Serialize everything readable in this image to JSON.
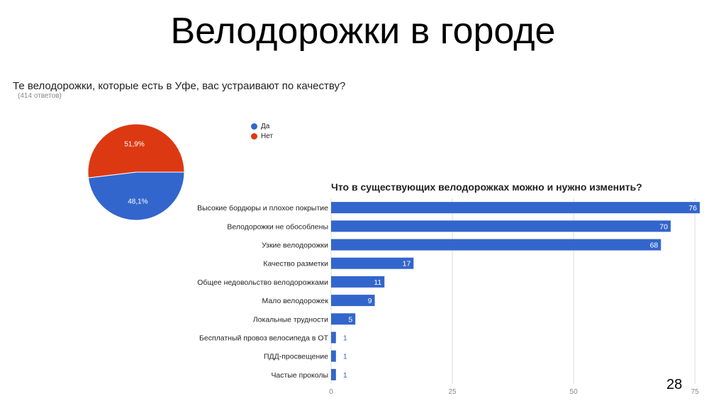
{
  "slide": {
    "title": "Велодорожки в городе",
    "page_number": "28"
  },
  "colors": {
    "blue": "#3366cc",
    "red": "#dc3912",
    "grid": "#dddddd"
  },
  "chart_data": [
    {
      "type": "pie",
      "title": "Те велодорожки, которые есть в Уфе, вас устраивают по качеству?",
      "subtitle": "(414 ответов)",
      "labels": [
        "Да",
        "Нет"
      ],
      "values": [
        48.1,
        51.9
      ],
      "value_labels": [
        "48,1%",
        "51,9%"
      ],
      "legend": "right"
    },
    {
      "type": "bar",
      "orientation": "horizontal",
      "title": "Что в существующих велодорожках можно и нужно изменить?",
      "categories": [
        "Высокие бордюры и плохое покрытие",
        "Велодорожки не обособлены",
        "Узкие велодорожки",
        "Качество разметки",
        "Общее недовольство велодорожками",
        "Мало велодорожек",
        "Локальные трудности",
        "Бесплатный провоз велосипеда в ОТ",
        "ПДД-просвещение",
        "Частые проколы"
      ],
      "values": [
        76,
        70,
        68,
        17,
        11,
        9,
        5,
        1,
        1,
        1
      ],
      "xlim": [
        0,
        76
      ],
      "xticks": [
        "0",
        "25",
        "50",
        "75"
      ],
      "grid": true
    }
  ]
}
